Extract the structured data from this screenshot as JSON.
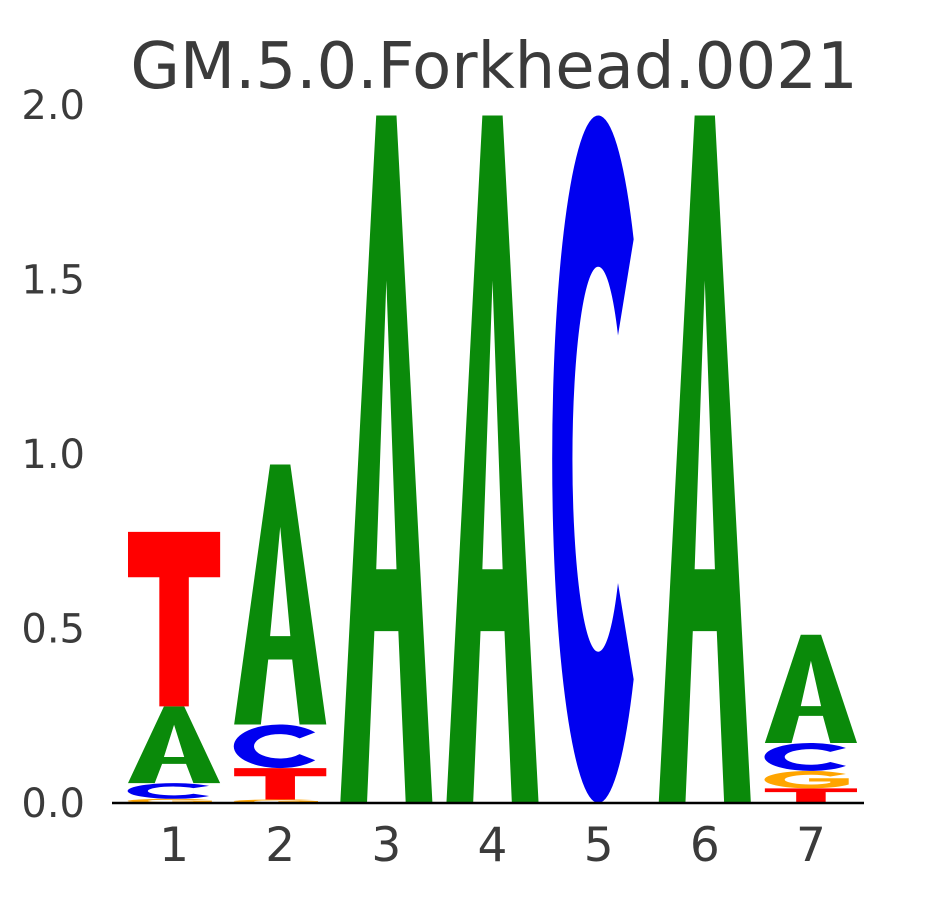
{
  "figure": {
    "background": "#ffffff"
  },
  "chart_data": {
    "type": "sequence_logo",
    "title": "GM.5.0.Forkhead.0021",
    "xlabel": "",
    "ylabel": "",
    "units": "bits",
    "ylim": [
      0.0,
      2.0
    ],
    "yticks": [
      "0.0",
      "0.5",
      "1.0",
      "1.5",
      "2.0"
    ],
    "xticks": [
      "1",
      "2",
      "3",
      "4",
      "5",
      "6",
      "7"
    ],
    "grid": false,
    "legend": "none",
    "text_color": "#3b3b3b",
    "baseline_color": "#000000",
    "letter_colors": {
      "A": "#0a8a0a",
      "C": "#0000f0",
      "G": "#ffa500",
      "T": "#ff0000"
    },
    "columns": [
      {
        "position": "1",
        "stack": [
          {
            "letter": "G",
            "bits": 0.012
          },
          {
            "letter": "C",
            "bits": 0.045
          },
          {
            "letter": "A",
            "bits": 0.22
          },
          {
            "letter": "T",
            "bits": 0.5
          }
        ]
      },
      {
        "position": "2",
        "stack": [
          {
            "letter": "G",
            "bits": 0.01
          },
          {
            "letter": "T",
            "bits": 0.09
          },
          {
            "letter": "C",
            "bits": 0.125
          },
          {
            "letter": "A",
            "bits": 0.745
          }
        ]
      },
      {
        "position": "3",
        "stack": [
          {
            "letter": "A",
            "bits": 1.97
          }
        ]
      },
      {
        "position": "4",
        "stack": [
          {
            "letter": "A",
            "bits": 1.97
          }
        ]
      },
      {
        "position": "5",
        "stack": [
          {
            "letter": "C",
            "bits": 1.97
          }
        ]
      },
      {
        "position": "6",
        "stack": [
          {
            "letter": "A",
            "bits": 1.97
          }
        ]
      },
      {
        "position": "7",
        "stack": [
          {
            "letter": "T",
            "bits": 0.042
          },
          {
            "letter": "G",
            "bits": 0.05
          },
          {
            "letter": "C",
            "bits": 0.08
          },
          {
            "letter": "A",
            "bits": 0.31
          }
        ]
      }
    ]
  }
}
